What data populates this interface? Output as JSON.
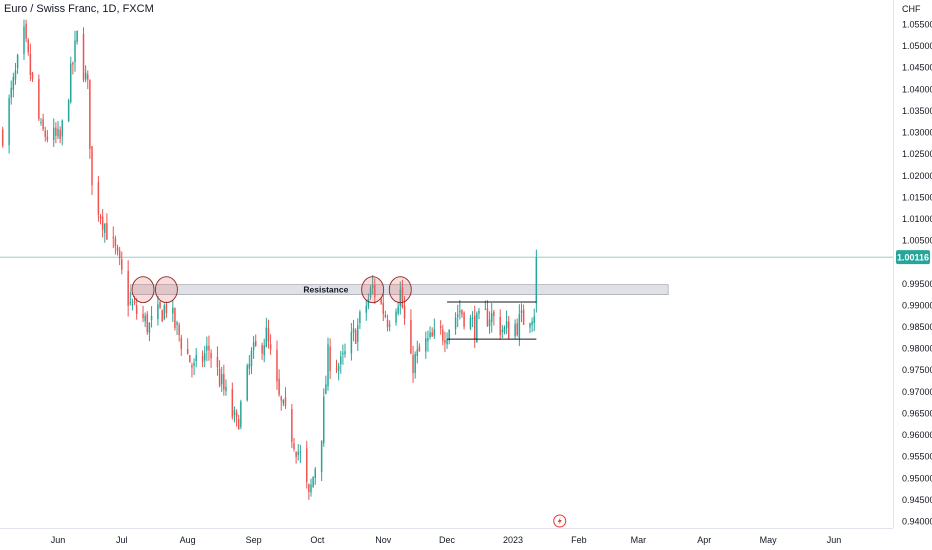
{
  "header": {
    "title": "Euro / Swiss Franc, 1D, FXCM"
  },
  "colors": {
    "up": "#26a69a",
    "down": "#ef5350",
    "resistance_fill": "#d1d4dc",
    "circle": "#e57373",
    "price_badge": "#26a69a",
    "price_line": "#4db6ac"
  },
  "icons": {
    "event_marker": "lightning-icon"
  },
  "chart_data": {
    "type": "candlestick",
    "title": "Euro / Swiss Franc, 1D, FXCM",
    "currency": "CHF",
    "ylim": [
      0.938,
      1.0575
    ],
    "y_ticks": [
      "1.05500",
      "1.05000",
      "1.04500",
      "1.04000",
      "1.03500",
      "1.03000",
      "1.02500",
      "1.02000",
      "1.01500",
      "1.01000",
      "1.00500",
      "0.99500",
      "0.99000",
      "0.98500",
      "0.98000",
      "0.97500",
      "0.97000",
      "0.96500",
      "0.96000",
      "0.95500",
      "0.95000",
      "0.94500",
      "0.94000"
    ],
    "x_ticks": [
      "Jun",
      "Jul",
      "Aug",
      "Sep",
      "Oct",
      "Nov",
      "Dec",
      "2023",
      "Feb",
      "Mar",
      "Apr",
      "May",
      "Jun"
    ],
    "x_tick_dates": [
      "2022-06-01",
      "2022-07-01",
      "2022-08-01",
      "2022-09-01",
      "2022-10-01",
      "2022-11-01",
      "2022-12-01",
      "2023-01-01",
      "2023-02-01",
      "2023-03-01",
      "2023-04-01",
      "2023-05-01",
      "2023-06-01"
    ],
    "last_price": "1.00116",
    "resistance": {
      "label": "Resistance",
      "low": 0.9925,
      "high": 0.9948,
      "start": "2022-07-05",
      "end": "2023-03-15"
    },
    "touch_points": [
      "2022-07-11",
      "2022-07-22",
      "2022-10-27",
      "2022-11-09"
    ],
    "consolidation_box": {
      "top": 0.9908,
      "bottom": 0.9822,
      "start": "2022-12-01",
      "end": "2023-01-12"
    },
    "key_points": [
      {
        "date": "2022-05-06",
        "price": 1.03
      },
      {
        "date": "2022-05-16",
        "price": 1.052
      },
      {
        "date": "2022-05-24",
        "price": 1.03
      },
      {
        "date": "2022-06-02",
        "price": 1.028
      },
      {
        "date": "2022-06-10",
        "price": 1.052
      },
      {
        "date": "2022-06-15",
        "price": 1.04
      },
      {
        "date": "2022-06-17",
        "price": 1.017
      },
      {
        "date": "2022-06-28",
        "price": 1.002
      },
      {
        "date": "2022-07-05",
        "price": 0.99
      },
      {
        "date": "2022-07-14",
        "price": 0.985
      },
      {
        "date": "2022-07-22",
        "price": 0.99
      },
      {
        "date": "2022-08-04",
        "price": 0.975
      },
      {
        "date": "2022-08-11",
        "price": 0.98
      },
      {
        "date": "2022-08-24",
        "price": 0.962
      },
      {
        "date": "2022-08-31",
        "price": 0.978
      },
      {
        "date": "2022-09-07",
        "price": 0.983
      },
      {
        "date": "2022-09-13",
        "price": 0.968
      },
      {
        "date": "2022-09-23",
        "price": 0.955
      },
      {
        "date": "2022-09-27",
        "price": 0.945
      },
      {
        "date": "2022-10-03",
        "price": 0.961
      },
      {
        "date": "2022-10-06",
        "price": 0.978
      },
      {
        "date": "2022-10-12",
        "price": 0.976
      },
      {
        "date": "2022-10-20",
        "price": 0.985
      },
      {
        "date": "2022-10-27",
        "price": 0.994
      },
      {
        "date": "2022-11-03",
        "price": 0.987
      },
      {
        "date": "2022-11-09",
        "price": 0.993
      },
      {
        "date": "2022-11-14",
        "price": 0.976
      },
      {
        "date": "2022-11-21",
        "price": 0.981
      },
      {
        "date": "2022-11-30",
        "price": 0.984
      },
      {
        "date": "2022-12-07",
        "price": 0.989
      },
      {
        "date": "2022-12-14",
        "price": 0.985
      },
      {
        "date": "2022-12-21",
        "price": 0.988
      },
      {
        "date": "2022-12-28",
        "price": 0.984
      },
      {
        "date": "2023-01-04",
        "price": 0.986
      },
      {
        "date": "2023-01-11",
        "price": 0.989
      },
      {
        "date": "2023-01-12",
        "price": 1.0012
      }
    ]
  }
}
